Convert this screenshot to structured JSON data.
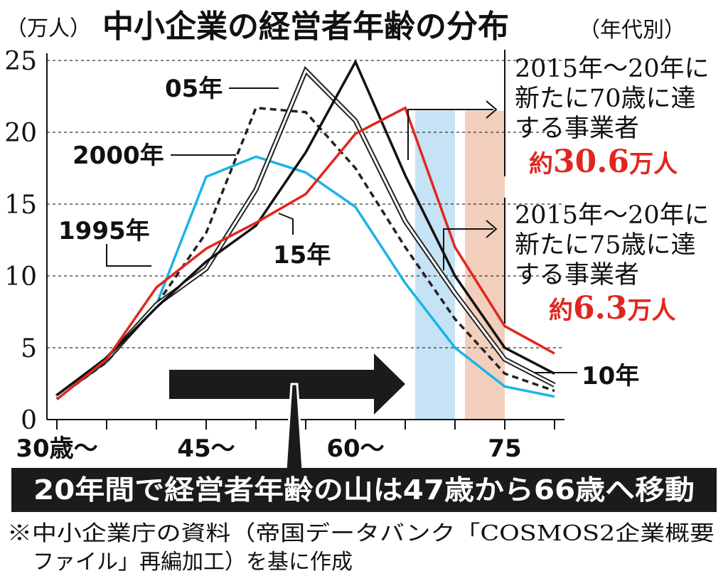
{
  "chart_data": {
    "type": "line",
    "title": "中小企業の経営者年齢の分布",
    "title_suffix": "（年代別）",
    "ylabel": "（万人）",
    "ylim": [
      0,
      25
    ],
    "xlim": [
      29,
      81
    ],
    "yticks": [
      0,
      5,
      10,
      15,
      20,
      25
    ],
    "grid": true,
    "x_tick_labels": [
      {
        "x": 30,
        "label": "30歳〜"
      },
      {
        "x": 45,
        "label": "45〜"
      },
      {
        "x": 60,
        "label": "60〜"
      },
      {
        "x": 75,
        "label": "75"
      }
    ],
    "x": [
      30,
      35,
      40,
      45,
      50,
      55,
      60,
      65,
      70,
      75,
      80
    ],
    "series": [
      {
        "name": "1995年",
        "color": "#1ab4e8",
        "style": "solid",
        "values": [
          1.5,
          4.0,
          8.0,
          16.9,
          18.3,
          17.2,
          14.8,
          9.5,
          5.0,
          2.3,
          1.6
        ]
      },
      {
        "name": "2000年",
        "color": "#222222",
        "style": "dashed",
        "values": [
          1.5,
          4.0,
          8.0,
          13.0,
          21.7,
          21.4,
          17.5,
          12.0,
          7.0,
          3.2,
          2.0
        ]
      },
      {
        "name": "05年",
        "color": "#222222",
        "style": "double",
        "values": [
          1.6,
          4.2,
          8.0,
          10.5,
          16.0,
          24.3,
          20.8,
          13.8,
          8.8,
          4.2,
          2.4
        ]
      },
      {
        "name": "10年",
        "color": "#111111",
        "style": "solid",
        "values": [
          1.7,
          4.3,
          7.8,
          11.0,
          13.5,
          18.6,
          24.9,
          17.0,
          10.0,
          5.0,
          3.2
        ]
      },
      {
        "name": "15年",
        "color": "#e0271e",
        "style": "solid",
        "values": [
          1.4,
          4.2,
          9.2,
          11.9,
          13.7,
          15.7,
          19.9,
          21.7,
          12.0,
          6.5,
          4.6
        ]
      }
    ],
    "shaded_bands": [
      {
        "x_from": 66,
        "x_to": 70,
        "color": "#c6e2f5"
      },
      {
        "x_from": 71,
        "x_to": 75,
        "color": "#f2cfbc"
      }
    ],
    "annotations": {
      "callout_70": {
        "lines": [
          "2015年〜20年に",
          "新たに70歳に達",
          "する事業者"
        ],
        "value_prefix": "約",
        "value": "30.6",
        "value_unit": "万人"
      },
      "callout_75": {
        "lines": [
          "2015年〜20年に",
          "新たに75歳に達",
          "する事業者"
        ],
        "value_prefix": "約",
        "value": "6.3",
        "value_unit": "万人"
      },
      "banner": "20年間で経営者年齢の山は47歳から66歳へ移動",
      "source": [
        "※中小企業庁の資料（帝国データバンク「COSMOS2企業概要",
        "ファイル」再編加工）を基に作成"
      ]
    }
  }
}
